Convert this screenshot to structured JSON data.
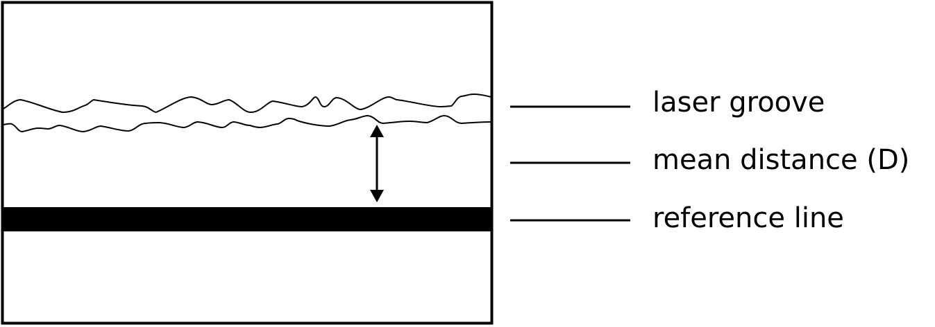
{
  "legend": [
    {
      "label": "laser groove"
    },
    {
      "label": "mean distance (D)"
    },
    {
      "label": "reference line"
    }
  ],
  "colors": {
    "stroke": "#000000",
    "background": "#ffffff"
  }
}
